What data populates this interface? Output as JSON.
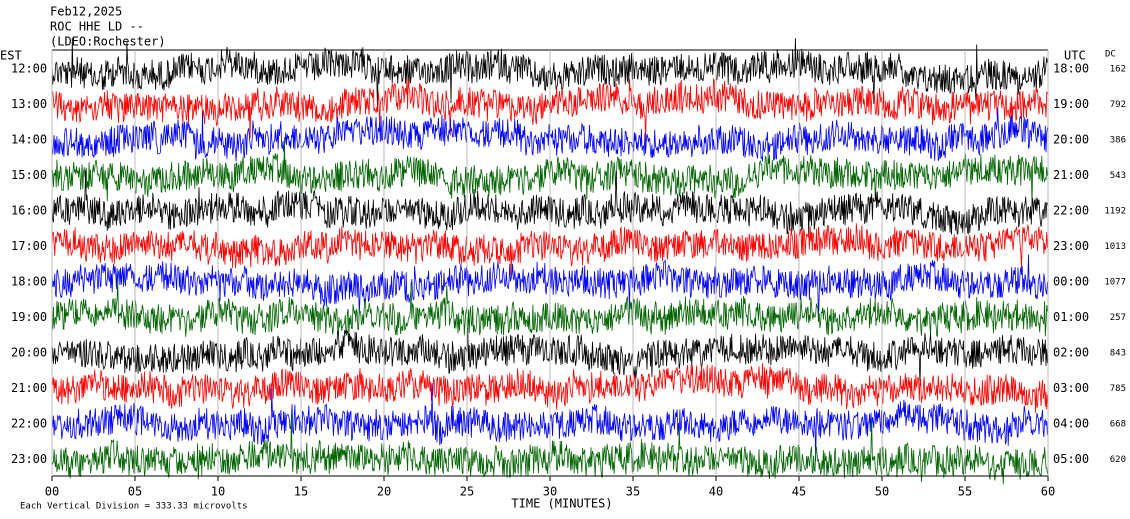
{
  "chart_data": {
    "type": "helicorder",
    "title_lines": [
      "Feb12,2025",
      "ROC HHE LD --",
      "(LDEO:Rochester)"
    ],
    "left_axis_label": "EST",
    "right_axis_label": "UTC",
    "dc_label": "DC",
    "categories": [
      "12:00",
      "13:00",
      "14:00",
      "15:00",
      "16:00",
      "17:00",
      "18:00",
      "19:00",
      "20:00",
      "21:00",
      "22:00",
      "23:00"
    ],
    "utc_labels": [
      "18:00",
      "19:00",
      "20:00",
      "21:00",
      "22:00",
      "23:00",
      "00:00",
      "01:00",
      "02:00",
      "03:00",
      "04:00",
      "05:00"
    ],
    "dc": [
      162,
      792,
      386,
      543,
      1192,
      1013,
      1077,
      257,
      843,
      785,
      668,
      620
    ],
    "colors": [
      "#000000",
      "#ff0000",
      "#0000ff",
      "#006400"
    ],
    "xlabel": "TIME (MINUTES)",
    "xlim": [
      0,
      60
    ],
    "xticks": [
      {
        "value": 0,
        "label": "00"
      },
      {
        "value": 5,
        "label": "05"
      },
      10,
      15,
      20,
      25,
      30,
      35,
      40,
      45,
      50,
      55,
      60
    ],
    "footer": "Each Vertical Division =  333.33 microvolts",
    "grid": true
  }
}
